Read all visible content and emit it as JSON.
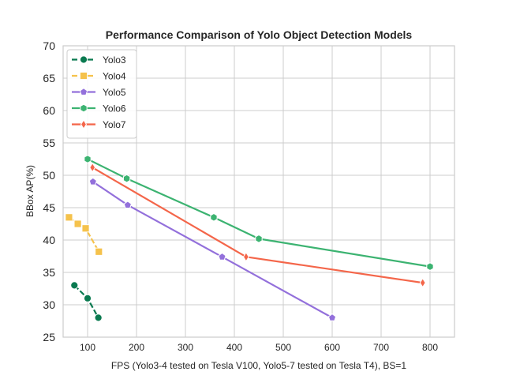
{
  "chart_data": {
    "type": "line",
    "title": "Performance Comparison of Yolo Object Detection Models",
    "xlabel": "FPS (Yolo3-4 tested on Tesla V100, Yolo5-7 tested on Tesla T4), BS=1",
    "ylabel": "BBox AP(%)",
    "xlim": [
      50,
      850
    ],
    "ylim": [
      25,
      70
    ],
    "xticks": [
      100,
      200,
      300,
      400,
      500,
      600,
      700,
      800
    ],
    "yticks": [
      25,
      30,
      35,
      40,
      45,
      50,
      55,
      60,
      65,
      70
    ],
    "grid": true,
    "legend_position": "top-left",
    "series": [
      {
        "name": "Yolo3",
        "color": "#0a7a50",
        "marker": "circle",
        "linestyle": "dashed",
        "x": [
          73,
          100,
          122
        ],
        "y": [
          33.0,
          31.0,
          28.0
        ]
      },
      {
        "name": "Yolo4",
        "color": "#f5c24c",
        "marker": "square",
        "linestyle": "dashed",
        "x": [
          62,
          80,
          96,
          123
        ],
        "y": [
          43.5,
          42.5,
          41.8,
          38.2
        ]
      },
      {
        "name": "Yolo5",
        "color": "#9370db",
        "marker": "pentagon",
        "linestyle": "solid",
        "x": [
          111,
          182,
          375,
          600
        ],
        "y": [
          49.0,
          45.4,
          37.4,
          28.0
        ]
      },
      {
        "name": "Yolo6",
        "color": "#3cb371",
        "marker": "hexagon",
        "linestyle": "solid",
        "x": [
          100,
          180,
          358,
          450,
          800
        ],
        "y": [
          52.5,
          49.5,
          43.5,
          40.2,
          35.9
        ]
      },
      {
        "name": "Yolo7",
        "color": "#f4664a",
        "marker": "thin_diamond",
        "linestyle": "solid",
        "x": [
          110,
          424,
          785
        ],
        "y": [
          51.2,
          37.4,
          33.4
        ]
      }
    ]
  }
}
